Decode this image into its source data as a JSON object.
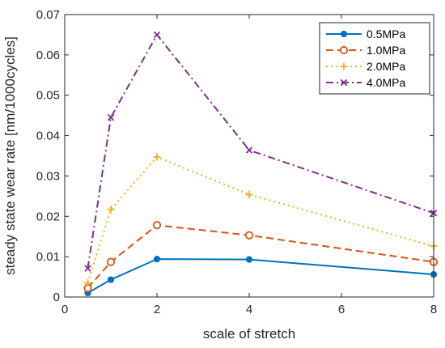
{
  "chart_data": {
    "type": "line",
    "xlabel": "scale of stretch",
    "ylabel": "steady state wear rate [nm/1000cycles]",
    "x": [
      0.5,
      1,
      2,
      4,
      8
    ],
    "x_tick_values": [
      0,
      2,
      4,
      6,
      8
    ],
    "x_ticks": [
      "0",
      "2",
      "4",
      "6",
      "8"
    ],
    "y_tick_values": [
      0,
      0.01,
      0.02,
      0.03,
      0.04,
      0.05,
      0.06,
      0.07
    ],
    "y_ticks": [
      "0",
      "0.01",
      "0.02",
      "0.03",
      "0.04",
      "0.05",
      "0.06",
      "0.07"
    ],
    "xlim": [
      0,
      8
    ],
    "ylim": [
      0,
      0.07
    ],
    "grid": false,
    "legend_position": "top-right",
    "series": [
      {
        "name": "0.5MPa",
        "values": [
          0.001,
          0.0043,
          0.0094,
          0.0093,
          0.0056
        ],
        "color": "#0072BD",
        "line_style": "solid",
        "marker": "dot"
      },
      {
        "name": "1.0MPa",
        "values": [
          0.0022,
          0.0087,
          0.0178,
          0.0153,
          0.0087
        ],
        "color": "#D95319",
        "line_style": "dashed",
        "marker": "circle"
      },
      {
        "name": "2.0MPa",
        "values": [
          0.0035,
          0.0217,
          0.0347,
          0.0254,
          0.0126
        ],
        "color": "#EDB120",
        "line_style": "dotted",
        "marker": "plus"
      },
      {
        "name": "4.0MPa",
        "values": [
          0.0071,
          0.0445,
          0.065,
          0.0364,
          0.0208
        ],
        "color": "#7E2F8E",
        "line_style": "dashdot",
        "marker": "x"
      }
    ]
  }
}
